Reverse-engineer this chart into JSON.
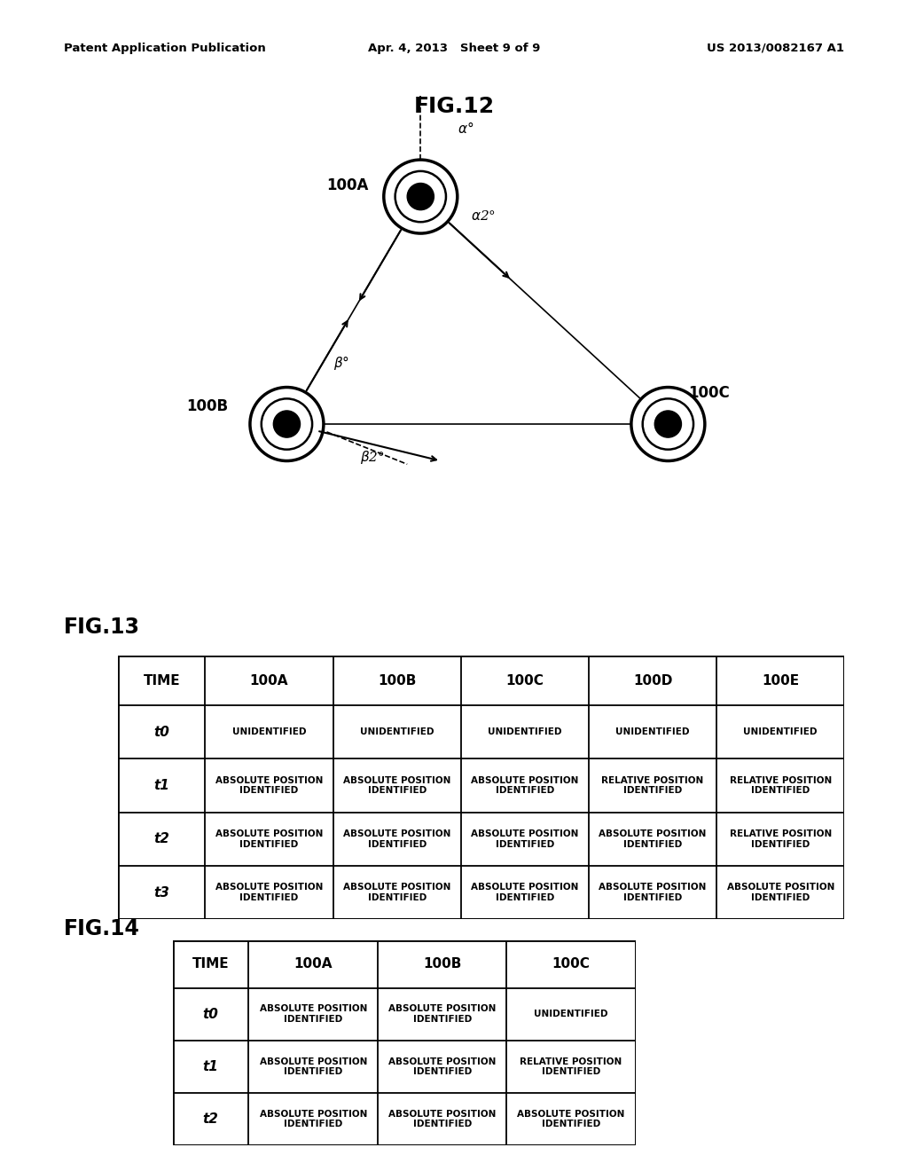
{
  "header_left": "Patent Application Publication",
  "header_center": "Apr. 4, 2013   Sheet 9 of 9",
  "header_right": "US 2013/0082167 A1",
  "fig12_title": "FIG.12",
  "fig13_title": "FIG.13",
  "fig14_title": "FIG.14",
  "fig13_cols": [
    "TIME",
    "100A",
    "100B",
    "100C",
    "100D",
    "100E"
  ],
  "fig13_rows": [
    [
      "t0",
      "UNIDENTIFIED",
      "UNIDENTIFIED",
      "UNIDENTIFIED",
      "UNIDENTIFIED",
      "UNIDENTIFIED"
    ],
    [
      "t1",
      "ABSOLUTE POSITION\nIDENTIFIED",
      "ABSOLUTE POSITION\nIDENTIFIED",
      "ABSOLUTE POSITION\nIDENTIFIED",
      "RELATIVE POSITION\nIDENTIFIED",
      "RELATIVE POSITION\nIDENTIFIED"
    ],
    [
      "t2",
      "ABSOLUTE POSITION\nIDENTIFIED",
      "ABSOLUTE POSITION\nIDENTIFIED",
      "ABSOLUTE POSITION\nIDENTIFIED",
      "ABSOLUTE POSITION\nIDENTIFIED",
      "RELATIVE POSITION\nIDENTIFIED"
    ],
    [
      "t3",
      "ABSOLUTE POSITION\nIDENTIFIED",
      "ABSOLUTE POSITION\nIDENTIFIED",
      "ABSOLUTE POSITION\nIDENTIFIED",
      "ABSOLUTE POSITION\nIDENTIFIED",
      "ABSOLUTE POSITION\nIDENTIFIED"
    ]
  ],
  "fig14_cols": [
    "TIME",
    "100A",
    "100B",
    "100C"
  ],
  "fig14_rows": [
    [
      "t0",
      "ABSOLUTE POSITION\nIDENTIFIED",
      "ABSOLUTE POSITION\nIDENTIFIED",
      "UNIDENTIFIED"
    ],
    [
      "t1",
      "ABSOLUTE POSITION\nIDENTIFIED",
      "ABSOLUTE POSITION\nIDENTIFIED",
      "RELATIVE POSITION\nIDENTIFIED"
    ],
    [
      "t2",
      "ABSOLUTE POSITION\nIDENTIFIED",
      "ABSOLUTE POSITION\nIDENTIFIED",
      "ABSOLUTE POSITION\nIDENTIFIED"
    ]
  ],
  "bg_color": "#ffffff",
  "text_color": "#000000"
}
